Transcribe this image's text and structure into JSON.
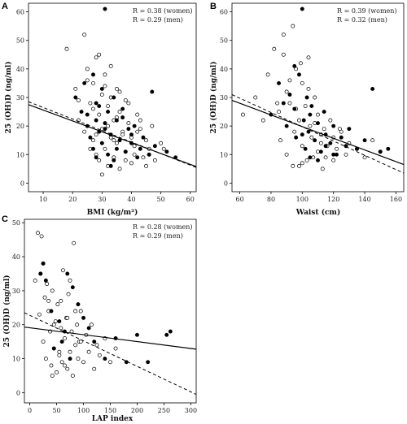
{
  "chart_data": [
    {
      "panel": "A",
      "type": "scatter",
      "xlabel": "BMI (kg/m²)",
      "ylabel": "25 (OH)D (ng/ml)",
      "xlim": [
        5,
        62
      ],
      "ylim": [
        -3,
        63
      ],
      "xticks": [
        10,
        20,
        30,
        40,
        50,
        60
      ],
      "yticks": [
        0,
        10,
        20,
        30,
        40,
        50,
        60
      ],
      "annotations": [
        "R = 0.38 (women)",
        "R = 0.29 (men)"
      ],
      "series": [
        {
          "name": "women",
          "marker": "open-circle",
          "x": [
            18,
            21,
            22,
            24,
            24,
            25,
            26,
            27,
            27,
            28,
            28,
            29,
            29,
            30,
            30,
            31,
            31,
            32,
            32,
            33,
            33,
            34,
            34,
            35,
            35,
            36,
            36,
            37,
            38,
            38,
            39,
            40,
            40,
            41,
            42,
            43,
            44,
            45,
            46,
            47,
            48,
            50,
            22,
            25,
            27,
            29,
            31,
            33,
            35,
            37,
            39,
            41,
            43,
            45,
            26,
            28,
            30,
            32,
            34,
            36,
            38,
            42,
            46,
            51
          ],
          "y": [
            47,
            33,
            22,
            18,
            52,
            40,
            28,
            15,
            35,
            10,
            44,
            24,
            8,
            31,
            19,
            12,
            38,
            27,
            6,
            16,
            41,
            22,
            9,
            33,
            14,
            25,
            5,
            18,
            29,
            11,
            21,
            16,
            7,
            13,
            24,
            19,
            9,
            15,
            12,
            20,
            8,
            14,
            29,
            36,
            26,
            45,
            34,
            30,
            23,
            17,
            28,
            10,
            22,
            6,
            12,
            17,
            3,
            20,
            15,
            32,
            8,
            18,
            10,
            12
          ]
        },
        {
          "name": "men",
          "marker": "filled-circle",
          "x": [
            21,
            23,
            24,
            25,
            26,
            27,
            27,
            28,
            28,
            29,
            29,
            30,
            30,
            31,
            31,
            32,
            32,
            33,
            33,
            34,
            35,
            35,
            36,
            37,
            38,
            39,
            40,
            41,
            42,
            44,
            46,
            47,
            48,
            52,
            55,
            25,
            28,
            31,
            34,
            37,
            40,
            43
          ],
          "y": [
            30,
            25,
            35,
            20,
            16,
            12,
            38,
            22,
            9,
            27,
            18,
            33,
            14,
            61,
            21,
            10,
            25,
            17,
            6,
            30,
            12,
            22,
            15,
            26,
            11,
            19,
            14,
            20,
            9,
            16,
            10,
            32,
            13,
            11,
            9,
            24,
            28,
            19,
            8,
            23,
            17,
            12
          ]
        }
      ],
      "fits": [
        {
          "name": "women",
          "style": "dashed",
          "x": [
            5,
            62
          ],
          "y": [
            28.5,
            5.5
          ]
        },
        {
          "name": "men",
          "style": "solid",
          "x": [
            5,
            62
          ],
          "y": [
            27.5,
            5.8
          ]
        }
      ]
    },
    {
      "panel": "B",
      "type": "scatter",
      "xlabel": "Waist (cm)",
      "ylabel": "25 (OH)D (ng/ml)",
      "xlim": [
        55,
        165
      ],
      "ylim": [
        -3,
        63
      ],
      "xticks": [
        60,
        80,
        100,
        120,
        140,
        160
      ],
      "yticks": [
        0,
        10,
        20,
        30,
        40,
        50,
        60
      ],
      "annotations": [
        "R = 0.39 (women)",
        "R = 0.32 (men)"
      ],
      "series": [
        {
          "name": "women",
          "marker": "open-circle",
          "x": [
            62,
            70,
            75,
            78,
            82,
            85,
            86,
            88,
            90,
            90,
            92,
            94,
            95,
            96,
            98,
            98,
            100,
            100,
            102,
            103,
            104,
            105,
            106,
            108,
            110,
            110,
            112,
            114,
            115,
            118,
            120,
            122,
            125,
            128,
            130,
            135,
            140,
            145,
            150,
            88,
            92,
            96,
            100,
            104,
            108,
            112,
            116,
            120,
            124,
            84,
            94,
            99,
            107,
            113
          ],
          "y": [
            24,
            30,
            22,
            38,
            47,
            25,
            15,
            45,
            32,
            10,
            28,
            55,
            18,
            40,
            22,
            6,
            35,
            13,
            27,
            8,
            44,
            20,
            16,
            30,
            11,
            24,
            14,
            19,
            9,
            22,
            16,
            12,
            18,
            10,
            14,
            12,
            9,
            15,
            11,
            52,
            36,
            26,
            7,
            33,
            21,
            17,
            13,
            8,
            19,
            28,
            6,
            42,
            9,
            5
          ]
        },
        {
          "name": "men",
          "marker": "filled-circle",
          "x": [
            80,
            85,
            88,
            90,
            92,
            95,
            96,
            98,
            100,
            101,
            102,
            103,
            104,
            105,
            106,
            108,
            110,
            112,
            114,
            115,
            118,
            120,
            122,
            125,
            128,
            130,
            135,
            140,
            145,
            150,
            155,
            95,
            100,
            105,
            110,
            115,
            120
          ],
          "y": [
            24,
            35,
            28,
            20,
            31,
            26,
            16,
            38,
            61,
            22,
            12,
            30,
            18,
            9,
            27,
            15,
            21,
            11,
            25,
            17,
            14,
            20,
            10,
            16,
            13,
            19,
            12,
            15,
            33,
            11,
            12,
            41,
            17,
            24,
            8,
            13,
            10
          ]
        }
      ],
      "fits": [
        {
          "name": "women",
          "style": "dashed",
          "x": [
            55,
            165
          ],
          "y": [
            31,
            3.5
          ]
        },
        {
          "name": "men",
          "style": "solid",
          "x": [
            55,
            165
          ],
          "y": [
            29,
            6.5
          ]
        }
      ]
    },
    {
      "panel": "C",
      "type": "scatter",
      "xlabel": "LAP index",
      "ylabel": "25 (OH)D (ng/ml)",
      "xlim": [
        -10,
        310
      ],
      "ylim": [
        -3,
        51
      ],
      "xticks": [
        0,
        50,
        100,
        150,
        200,
        250,
        300
      ],
      "yticks": [
        0,
        10,
        20,
        30,
        40,
        50
      ],
      "annotations": [
        "R = 0.28 (women)",
        "R = 0.29 (men)"
      ],
      "series": [
        {
          "name": "women",
          "marker": "open-circle",
          "x": [
            10,
            15,
            18,
            20,
            22,
            25,
            28,
            30,
            32,
            35,
            38,
            40,
            42,
            45,
            48,
            50,
            52,
            55,
            58,
            60,
            62,
            65,
            68,
            70,
            72,
            75,
            78,
            80,
            82,
            85,
            88,
            90,
            92,
            95,
            100,
            105,
            110,
            115,
            120,
            125,
            130,
            140,
            150,
            160,
            25,
            35,
            45,
            55,
            65,
            75,
            85,
            95,
            42,
            58,
            70
          ],
          "y": [
            33,
            47,
            23,
            35,
            46,
            15,
            28,
            10,
            32,
            24,
            18,
            8,
            30,
            13,
            21,
            6,
            26,
            11,
            19,
            9,
            36,
            16,
            22,
            7,
            29,
            12,
            18,
            5,
            44,
            14,
            20,
            10,
            15,
            24,
            9,
            17,
            12,
            20,
            7,
            14,
            11,
            16,
            9,
            13,
            38,
            27,
            20,
            12,
            8,
            33,
            24,
            15,
            5,
            27,
            22
          ]
        },
        {
          "name": "men",
          "marker": "filled-circle",
          "x": [
            20,
            25,
            30,
            40,
            45,
            55,
            60,
            65,
            70,
            75,
            80,
            90,
            100,
            110,
            120,
            140,
            160,
            180,
            200,
            220,
            255,
            262
          ],
          "y": [
            35,
            38,
            33,
            24,
            13,
            21,
            15,
            18,
            35,
            10,
            31,
            26,
            22,
            19,
            15,
            10,
            16,
            9,
            17,
            9,
            17,
            18
          ]
        }
      ],
      "fits": [
        {
          "name": "women",
          "style": "dashed",
          "x": [
            -10,
            310
          ],
          "y": [
            23.5,
            -0.5
          ]
        },
        {
          "name": "men",
          "style": "solid",
          "x": [
            -10,
            310
          ],
          "y": [
            19.3,
            12.8
          ]
        }
      ]
    }
  ]
}
